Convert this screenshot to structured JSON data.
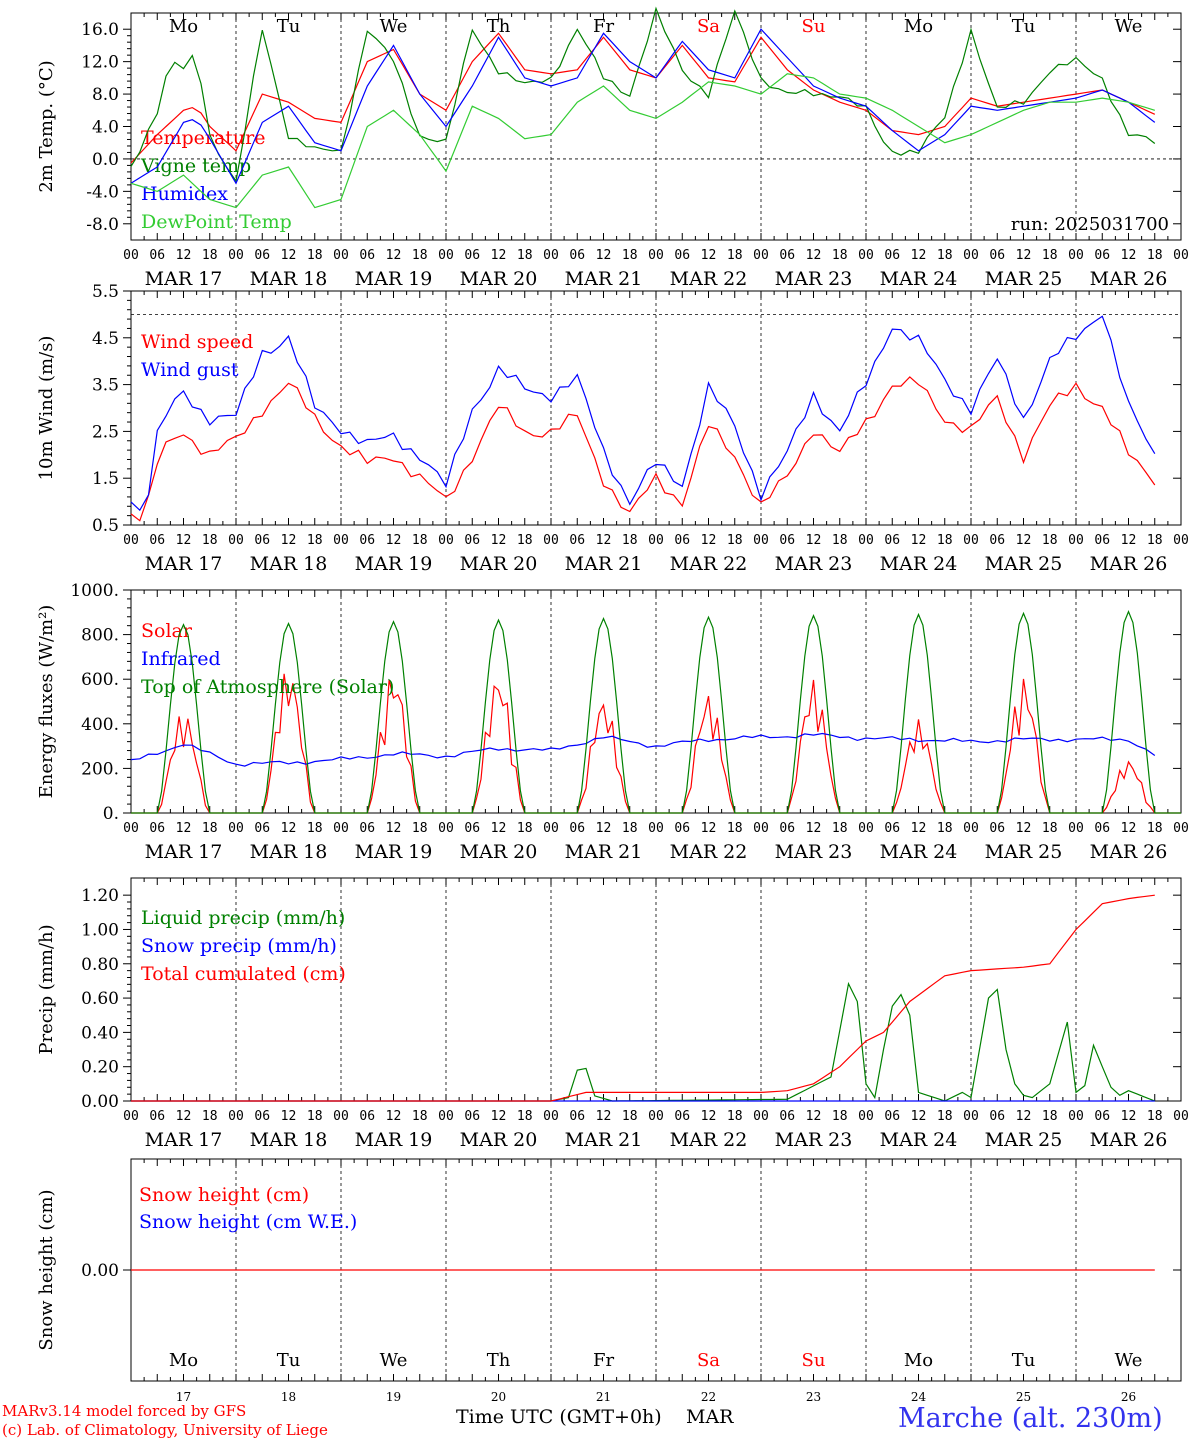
{
  "days": [
    "MAR 17",
    "MAR 18",
    "MAR 19",
    "MAR 20",
    "MAR 21",
    "MAR 22",
    "MAR 23",
    "MAR 24",
    "MAR 25",
    "MAR 26"
  ],
  "day_names": [
    "Mo",
    "Tu",
    "We",
    "Th",
    "Fr",
    "Sa",
    "Su",
    "Mo",
    "Tu",
    "We"
  ],
  "weekend_flags": [
    false,
    false,
    false,
    false,
    false,
    true,
    true,
    false,
    false,
    false
  ],
  "day_numbers": [
    "17",
    "18",
    "19",
    "20",
    "21",
    "22",
    "23",
    "24",
    "25",
    "26"
  ],
  "hour_ticks": [
    "00",
    "06",
    "12",
    "18"
  ],
  "run_label": "run: 2025031700",
  "footer": {
    "model_line": "MARv3.14 model forced by GFS",
    "lab_line": "(c) Lab. of Climatology, University of Liege",
    "axis_title": "Time UTC (GMT+0h)",
    "month": "MAR",
    "station": "Marche (alt. 230m)"
  },
  "colors": {
    "red": "#ff0000",
    "green": "#008000",
    "blue": "#0000ff",
    "light_green": "#33cc33",
    "station": "#3333ee"
  },
  "chart_data": [
    {
      "type": "line",
      "ylabel": "2m Temp. (°C)",
      "ylim": [
        -10,
        18
      ],
      "yticks": [
        -8,
        -4,
        0,
        4,
        8,
        12,
        16
      ],
      "ytick_labels": [
        "-8.0",
        "-4.0",
        "0.0",
        "4.0",
        "8.0",
        "12.0",
        "16.0"
      ],
      "ref_line": 0,
      "x_unit": "hours since MAR 17 00 UTC",
      "series": [
        {
          "name": "Temperature",
          "color": "red",
          "x": [
            0,
            6,
            12,
            15,
            18,
            24,
            30,
            36,
            42,
            48,
            54,
            60,
            66,
            72,
            78,
            84,
            90,
            96,
            102,
            108,
            114,
            120,
            126,
            132,
            138,
            144,
            150,
            156,
            162,
            168,
            174,
            180,
            186,
            192,
            198,
            204,
            210,
            216,
            222,
            228,
            234
          ],
          "y": [
            -0.5,
            3.0,
            6.0,
            6.5,
            4.0,
            1.0,
            8.0,
            7.0,
            5.0,
            4.5,
            12.0,
            13.5,
            8.0,
            6.0,
            12.0,
            15.5,
            11.0,
            10.5,
            11.0,
            15.0,
            11.0,
            10.0,
            14.0,
            10.0,
            9.5,
            15.0,
            11.0,
            8.5,
            7.0,
            6.0,
            3.5,
            3.0,
            4.0,
            7.5,
            6.5,
            7.0,
            7.5,
            8.0,
            8.5,
            7.0,
            5.5
          ]
        },
        {
          "name": "Vigne temp",
          "color": "green",
          "x": [
            0,
            6,
            9,
            12,
            15,
            18,
            24,
            30,
            36,
            42,
            48,
            54,
            60,
            66,
            72,
            78,
            84,
            90,
            96,
            102,
            108,
            114,
            120,
            126,
            132,
            138,
            144,
            150,
            156,
            162,
            168,
            172,
            174,
            180,
            186,
            192,
            198,
            204,
            210,
            216,
            222,
            228,
            234
          ],
          "y": [
            -1.0,
            6.0,
            12.0,
            11.0,
            13.0,
            3.0,
            -3.0,
            16.0,
            3.0,
            1.0,
            1.0,
            16.0,
            12.0,
            3.0,
            2.0,
            16.0,
            11.0,
            9.0,
            10.0,
            16.0,
            10.0,
            8.0,
            18.0,
            11.0,
            8.0,
            18.0,
            10.0,
            8.0,
            8.0,
            8.0,
            6.0,
            2.0,
            1.0,
            1.0,
            5.0,
            16.0,
            6.0,
            7.0,
            11.0,
            12.0,
            10.0,
            3.0,
            2.0
          ]
        },
        {
          "name": "Humidex",
          "color": "blue",
          "x": [
            0,
            6,
            12,
            15,
            18,
            24,
            30,
            36,
            42,
            48,
            54,
            60,
            66,
            72,
            78,
            84,
            90,
            96,
            102,
            108,
            114,
            120,
            126,
            132,
            138,
            144,
            150,
            156,
            162,
            168,
            174,
            180,
            186,
            192,
            198,
            204,
            210,
            216,
            222,
            228,
            234
          ],
          "y": [
            -3.0,
            -1.0,
            4.5,
            5.0,
            2.5,
            -3.0,
            4.5,
            6.5,
            2.0,
            1.0,
            9.0,
            14.0,
            8.0,
            4.0,
            9.0,
            15.0,
            10.0,
            9.0,
            10.0,
            15.5,
            12.0,
            10.0,
            14.5,
            11.0,
            10.0,
            16.0,
            12.5,
            9.0,
            7.5,
            6.5,
            3.5,
            1.0,
            3.0,
            6.5,
            6.0,
            6.5,
            7.0,
            7.5,
            8.5,
            7.0,
            4.5
          ]
        },
        {
          "name": "DewPoint Temp",
          "color": "light_green",
          "x": [
            0,
            6,
            12,
            18,
            24,
            30,
            36,
            42,
            48,
            54,
            60,
            66,
            72,
            78,
            84,
            90,
            96,
            102,
            108,
            114,
            120,
            126,
            132,
            138,
            144,
            150,
            156,
            162,
            168,
            174,
            180,
            186,
            192,
            198,
            204,
            210,
            216,
            222,
            228,
            234
          ],
          "y": [
            -3.0,
            -4.0,
            -2.0,
            -5.0,
            -6.0,
            -2.0,
            -1.0,
            -6.0,
            -5.0,
            4.0,
            6.0,
            3.0,
            -1.5,
            6.5,
            5.0,
            2.5,
            3.0,
            7.0,
            9.0,
            6.0,
            5.0,
            7.0,
            9.5,
            9.0,
            8.0,
            10.5,
            10.0,
            8.0,
            7.5,
            6.0,
            4.0,
            2.0,
            3.0,
            4.5,
            6.0,
            7.0,
            7.0,
            7.5,
            7.0,
            6.0
          ]
        }
      ]
    },
    {
      "type": "line",
      "ylabel": "10m Wind (m/s)",
      "ylim": [
        0.5,
        5.5
      ],
      "yticks": [
        0.5,
        1.5,
        2.5,
        3.5,
        4.5,
        5.5
      ],
      "ytick_labels": [
        "0.5",
        "1.5",
        "2.5",
        "3.5",
        "4.5",
        "5.5"
      ],
      "ref_line": 5.0,
      "x_unit": "hours since MAR 17 00 UTC",
      "series": [
        {
          "name": "Wind speed",
          "color": "red",
          "x": [
            0,
            3,
            6,
            9,
            12,
            18,
            24,
            30,
            36,
            42,
            48,
            54,
            60,
            66,
            72,
            78,
            84,
            90,
            96,
            102,
            108,
            114,
            120,
            126,
            132,
            138,
            144,
            150,
            156,
            162,
            168,
            174,
            180,
            186,
            192,
            198,
            204,
            210,
            216,
            222,
            228,
            234
          ],
          "y": [
            0.8,
            0.6,
            1.8,
            2.3,
            2.5,
            2.0,
            2.3,
            3.0,
            3.5,
            2.8,
            2.2,
            1.8,
            2.0,
            1.5,
            1.0,
            2.0,
            3.0,
            2.5,
            2.5,
            2.8,
            1.5,
            0.7,
            1.5,
            1.0,
            2.6,
            2.0,
            0.9,
            1.5,
            2.6,
            2.0,
            2.7,
            3.5,
            3.5,
            2.8,
            2.5,
            3.2,
            2.0,
            3.0,
            3.5,
            3.0,
            2.0,
            1.5
          ]
        },
        {
          "name": "Wind gust",
          "color": "blue",
          "x": [
            0,
            3,
            6,
            9,
            12,
            18,
            24,
            30,
            36,
            42,
            48,
            54,
            60,
            66,
            72,
            78,
            84,
            90,
            96,
            102,
            108,
            114,
            120,
            126,
            132,
            138,
            144,
            150,
            156,
            162,
            168,
            174,
            180,
            186,
            192,
            198,
            204,
            210,
            216,
            222,
            228,
            234
          ],
          "y": [
            1.1,
            0.7,
            2.4,
            3.0,
            3.3,
            2.8,
            2.8,
            4.2,
            4.5,
            3.0,
            2.6,
            2.2,
            2.4,
            2.0,
            1.3,
            3.0,
            3.8,
            3.4,
            3.3,
            3.6,
            2.1,
            1.0,
            1.8,
            1.4,
            3.4,
            2.6,
            1.2,
            2.0,
            3.3,
            2.5,
            3.5,
            4.8,
            4.4,
            3.6,
            3.0,
            4.0,
            2.8,
            4.0,
            4.5,
            5.1,
            3.0,
            2.0
          ]
        }
      ]
    },
    {
      "type": "line",
      "ylabel": "Energy fluxes (W/m²)",
      "ylim": [
        0,
        1000
      ],
      "yticks": [
        0,
        200,
        400,
        600,
        800,
        1000
      ],
      "ytick_labels": [
        "0.",
        "200.",
        "400.",
        "600.",
        "800.",
        "1000."
      ],
      "x_unit": "hours since MAR 17 00 UTC",
      "series": [
        {
          "name": "Solar",
          "color": "red",
          "peaks": [
            460,
            660,
            640,
            630,
            520,
            540,
            600,
            420,
            610,
            240
          ]
        },
        {
          "name": "Infrared",
          "color": "blue",
          "x": [
            0,
            12,
            24,
            36,
            48,
            60,
            72,
            84,
            96,
            108,
            120,
            132,
            144,
            156,
            168,
            180,
            192,
            204,
            216,
            228,
            234
          ],
          "y": [
            230,
            310,
            220,
            225,
            240,
            265,
            255,
            290,
            280,
            340,
            300,
            330,
            340,
            350,
            335,
            330,
            320,
            330,
            330,
            330,
            260
          ]
        },
        {
          "name": "Top of Atmosphere (Solar)",
          "color": "green",
          "peaks": [
            845,
            850,
            858,
            865,
            872,
            878,
            885,
            890,
            895,
            903
          ]
        }
      ]
    },
    {
      "type": "line",
      "ylabel": "Precip (mm/h)",
      "ylim": [
        0,
        1.3
      ],
      "yticks": [
        0,
        0.2,
        0.4,
        0.6,
        0.8,
        1.0,
        1.2
      ],
      "ytick_labels": [
        "0.00",
        "0.20",
        "0.40",
        "0.60",
        "0.80",
        "1.00",
        "1.20"
      ],
      "x_unit": "hours since MAR 17 00 UTC",
      "series": [
        {
          "name": "Liquid precip (mm/h)",
          "color": "green",
          "x": [
            0,
            96,
            100,
            102,
            104,
            106,
            110,
            150,
            160,
            165,
            168,
            170,
            172,
            175,
            178,
            180,
            186,
            190,
            192,
            196,
            198,
            200,
            202,
            205,
            210,
            215,
            216,
            217,
            219,
            221,
            222,
            225,
            228,
            234
          ],
          "y": [
            0,
            0,
            0.02,
            0.18,
            0.19,
            0.03,
            0,
            0.01,
            0.14,
            0.82,
            0.1,
            0.02,
            0.3,
            0.68,
            0.5,
            0.05,
            0,
            0.05,
            0.02,
            0.6,
            0.65,
            0.3,
            0.1,
            0,
            0.1,
            0.55,
            0.05,
            0.08,
            0.1,
            0.55,
            0.2,
            0.02,
            0.06,
            0
          ]
        },
        {
          "name": "Snow precip (mm/h)",
          "color": "blue",
          "x": [
            0,
            180,
            181,
            182,
            200,
            201,
            202,
            234
          ],
          "y": [
            0,
            0,
            0.13,
            0,
            0,
            0.05,
            0,
            0
          ]
        },
        {
          "name": "Total cumulated (cm)",
          "color": "red",
          "x": [
            0,
            96,
            104,
            144,
            150,
            156,
            162,
            168,
            172,
            178,
            186,
            192,
            198,
            204,
            210,
            216,
            222,
            228,
            234
          ],
          "y": [
            0,
            0,
            0.05,
            0.05,
            0.06,
            0.1,
            0.2,
            0.35,
            0.4,
            0.58,
            0.73,
            0.76,
            0.77,
            0.78,
            0.8,
            1.0,
            1.15,
            1.18,
            1.2
          ]
        }
      ]
    },
    {
      "type": "line",
      "ylabel": "Snow height (cm)",
      "ylim": [
        -1,
        1
      ],
      "yticks": [
        0
      ],
      "ytick_labels": [
        "0.00"
      ],
      "x_unit": "hours since MAR 17 00 UTC",
      "series": [
        {
          "name": "Snow height (cm)",
          "color": "red",
          "x": [
            0,
            234
          ],
          "y": [
            0,
            0
          ]
        },
        {
          "name": "Snow height (cm W.E.)",
          "color": "blue",
          "x": [],
          "y": []
        }
      ]
    }
  ]
}
